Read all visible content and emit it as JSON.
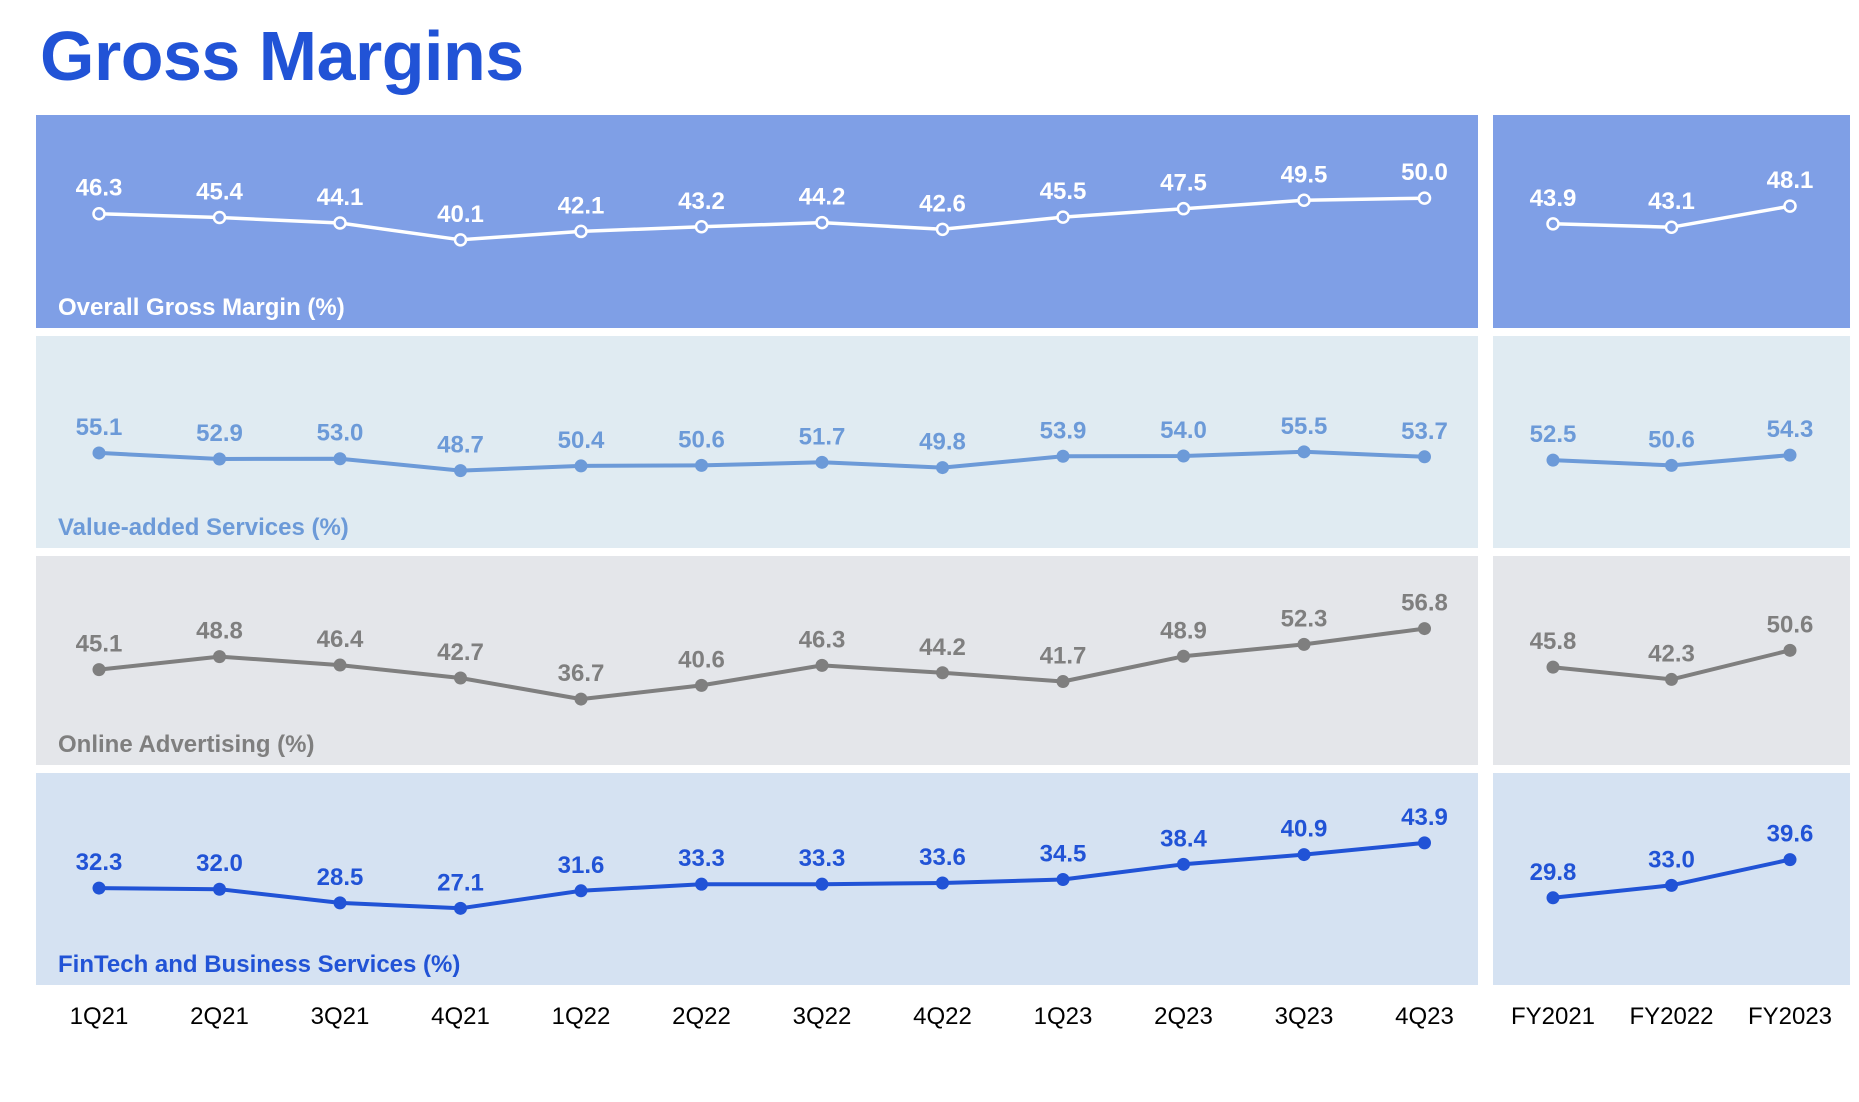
{
  "title": "Gross Margins",
  "colors": {
    "title": "#2153d6",
    "panel_overall": "#7f9fe6",
    "panel_vas": "#e0ebf2",
    "panel_ads": "#e4e6ea",
    "panel_fintech": "#d5e2f2",
    "line_overall": "#ffffff",
    "line_vas": "#6c9ad8",
    "line_ads": "#7f7f7f",
    "line_fintech": "#2153d6"
  },
  "chart_data": {
    "type": "line",
    "quarters": [
      "1Q21",
      "2Q21",
      "3Q21",
      "4Q21",
      "1Q22",
      "2Q22",
      "3Q22",
      "4Q22",
      "1Q23",
      "2Q23",
      "3Q23",
      "4Q23"
    ],
    "years": [
      "FY2021",
      "FY2022",
      "FY2023"
    ],
    "series": [
      {
        "name": "Overall Gross Margin (%)",
        "quarterly": [
          46.3,
          45.4,
          44.1,
          40.1,
          42.1,
          43.2,
          44.2,
          42.6,
          45.5,
          47.5,
          49.5,
          50.0
        ],
        "quarterly_labels": [
          "46.3",
          "45.4",
          "44.1",
          "40.1",
          "42.1",
          "43.2",
          "44.2",
          "42.6",
          "45.5",
          "47.5",
          "49.5",
          "50.0"
        ],
        "annual": [
          43.9,
          43.1,
          48.1
        ],
        "annual_labels": [
          "43.9",
          "43.1",
          "48.1"
        ]
      },
      {
        "name": "Value-added Services (%)",
        "quarterly": [
          55.1,
          52.9,
          53.0,
          48.7,
          50.4,
          50.6,
          51.7,
          49.8,
          53.9,
          54.0,
          55.5,
          53.7
        ],
        "quarterly_labels": [
          "55.1",
          "52.9",
          "53.0",
          "48.7",
          "50.4",
          "50.6",
          "51.7",
          "49.8",
          "53.9",
          "54.0",
          "55.5",
          "53.7"
        ],
        "annual": [
          52.5,
          50.6,
          54.3
        ],
        "annual_labels": [
          "52.5",
          "50.6",
          "54.3"
        ]
      },
      {
        "name": "Online Advertising (%)",
        "quarterly": [
          45.1,
          48.8,
          46.4,
          42.7,
          36.7,
          40.6,
          46.3,
          44.2,
          41.7,
          48.9,
          52.3,
          56.8
        ],
        "quarterly_labels": [
          "45.1",
          "48.8",
          "46.4",
          "42.7",
          "36.7",
          "40.6",
          "46.3",
          "44.2",
          "41.7",
          "48.9",
          "52.3",
          "56.8"
        ],
        "annual": [
          45.8,
          42.3,
          50.6
        ],
        "annual_labels": [
          "45.8",
          "42.3",
          "50.6"
        ]
      },
      {
        "name": "FinTech and Business Services (%)",
        "quarterly": [
          32.3,
          32.0,
          28.5,
          27.1,
          31.6,
          33.3,
          33.3,
          33.6,
          34.5,
          38.4,
          40.9,
          43.9
        ],
        "quarterly_labels": [
          "32.3",
          "32.0",
          "28.5",
          "27.1",
          "31.6",
          "33.3",
          "33.3",
          "33.6",
          "34.5",
          "38.4",
          "40.9",
          "43.9"
        ],
        "annual": [
          29.8,
          33.0,
          39.6
        ],
        "annual_labels": [
          "29.8",
          "33.0",
          "39.6"
        ]
      }
    ]
  }
}
